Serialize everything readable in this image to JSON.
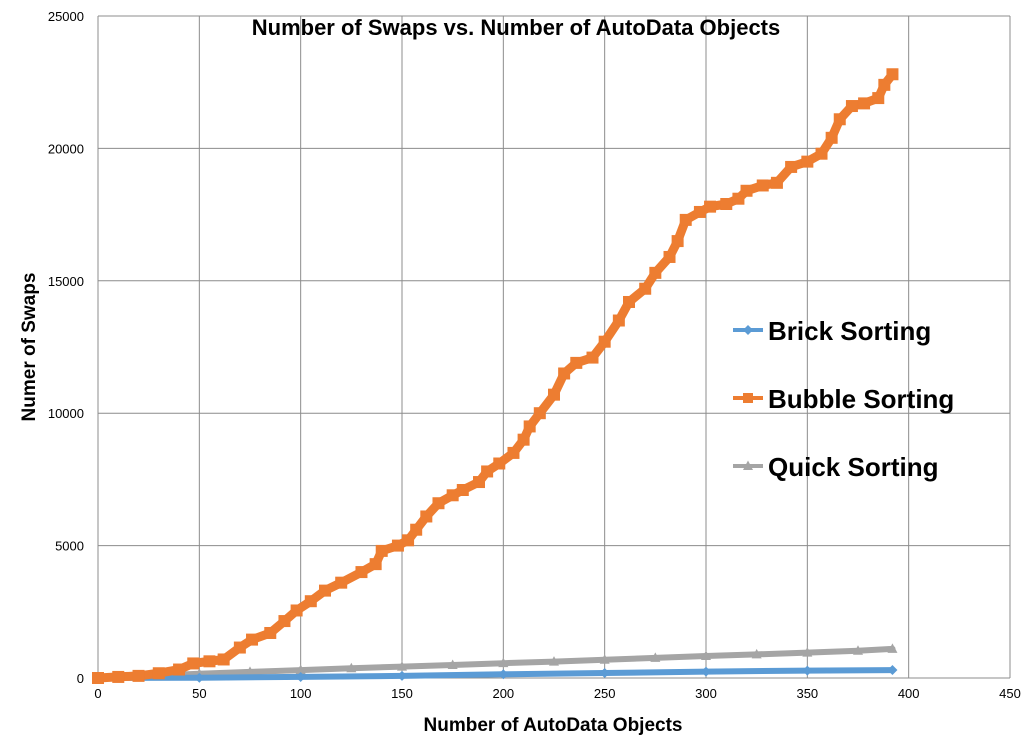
{
  "chart_data": {
    "type": "line",
    "title": "Number of Swaps vs. Number of AutoData Objects",
    "xlabel": "Number of AutoData Objects",
    "ylabel": "Numer of Swaps",
    "xlim": [
      0,
      450
    ],
    "ylim": [
      0,
      25000
    ],
    "x_ticks": [
      0,
      50,
      100,
      150,
      200,
      250,
      300,
      350,
      400,
      450
    ],
    "y_ticks": [
      0,
      5000,
      10000,
      15000,
      20000,
      25000
    ],
    "grid": true,
    "legend_position": "right",
    "series": [
      {
        "name": "Brick Sorting",
        "color": "#5b9bd5",
        "marker": "diamond",
        "points": [
          [
            0,
            0
          ],
          [
            50,
            10
          ],
          [
            100,
            40
          ],
          [
            150,
            80
          ],
          [
            200,
            140
          ],
          [
            250,
            190
          ],
          [
            300,
            240
          ],
          [
            350,
            280
          ],
          [
            392,
            300
          ]
        ]
      },
      {
        "name": "Bubble Sorting",
        "color": "#ed7d31",
        "marker": "square",
        "points": [
          [
            0,
            0
          ],
          [
            10,
            40
          ],
          [
            20,
            80
          ],
          [
            30,
            180
          ],
          [
            40,
            320
          ],
          [
            47,
            550
          ],
          [
            55,
            630
          ],
          [
            62,
            700
          ],
          [
            70,
            1150
          ],
          [
            76,
            1450
          ],
          [
            85,
            1700
          ],
          [
            92,
            2150
          ],
          [
            98,
            2550
          ],
          [
            105,
            2900
          ],
          [
            112,
            3300
          ],
          [
            120,
            3600
          ],
          [
            130,
            4000
          ],
          [
            137,
            4300
          ],
          [
            140,
            4800
          ],
          [
            148,
            5000
          ],
          [
            153,
            5200
          ],
          [
            157,
            5600
          ],
          [
            162,
            6100
          ],
          [
            168,
            6600
          ],
          [
            175,
            6900
          ],
          [
            180,
            7100
          ],
          [
            188,
            7400
          ],
          [
            192,
            7800
          ],
          [
            198,
            8100
          ],
          [
            205,
            8500
          ],
          [
            210,
            9000
          ],
          [
            213,
            9500
          ],
          [
            218,
            10000
          ],
          [
            225,
            10700
          ],
          [
            230,
            11500
          ],
          [
            236,
            11900
          ],
          [
            244,
            12100
          ],
          [
            250,
            12700
          ],
          [
            257,
            13500
          ],
          [
            262,
            14200
          ],
          [
            270,
            14700
          ],
          [
            275,
            15300
          ],
          [
            282,
            15900
          ],
          [
            286,
            16500
          ],
          [
            290,
            17300
          ],
          [
            297,
            17600
          ],
          [
            302,
            17800
          ],
          [
            310,
            17900
          ],
          [
            316,
            18100
          ],
          [
            320,
            18400
          ],
          [
            328,
            18600
          ],
          [
            335,
            18700
          ],
          [
            342,
            19300
          ],
          [
            350,
            19500
          ],
          [
            357,
            19800
          ],
          [
            362,
            20400
          ],
          [
            366,
            21100
          ],
          [
            372,
            21600
          ],
          [
            378,
            21700
          ],
          [
            385,
            21900
          ],
          [
            388,
            22400
          ],
          [
            392,
            22800
          ]
        ]
      },
      {
        "name": "Quick Sorting",
        "color": "#a5a5a5",
        "marker": "triangle",
        "points": [
          [
            0,
            0
          ],
          [
            25,
            80
          ],
          [
            50,
            160
          ],
          [
            75,
            230
          ],
          [
            100,
            300
          ],
          [
            125,
            370
          ],
          [
            150,
            430
          ],
          [
            175,
            490
          ],
          [
            200,
            560
          ],
          [
            225,
            620
          ],
          [
            250,
            690
          ],
          [
            275,
            760
          ],
          [
            300,
            830
          ],
          [
            325,
            890
          ],
          [
            350,
            960
          ],
          [
            375,
            1030
          ],
          [
            392,
            1100
          ]
        ]
      }
    ]
  }
}
